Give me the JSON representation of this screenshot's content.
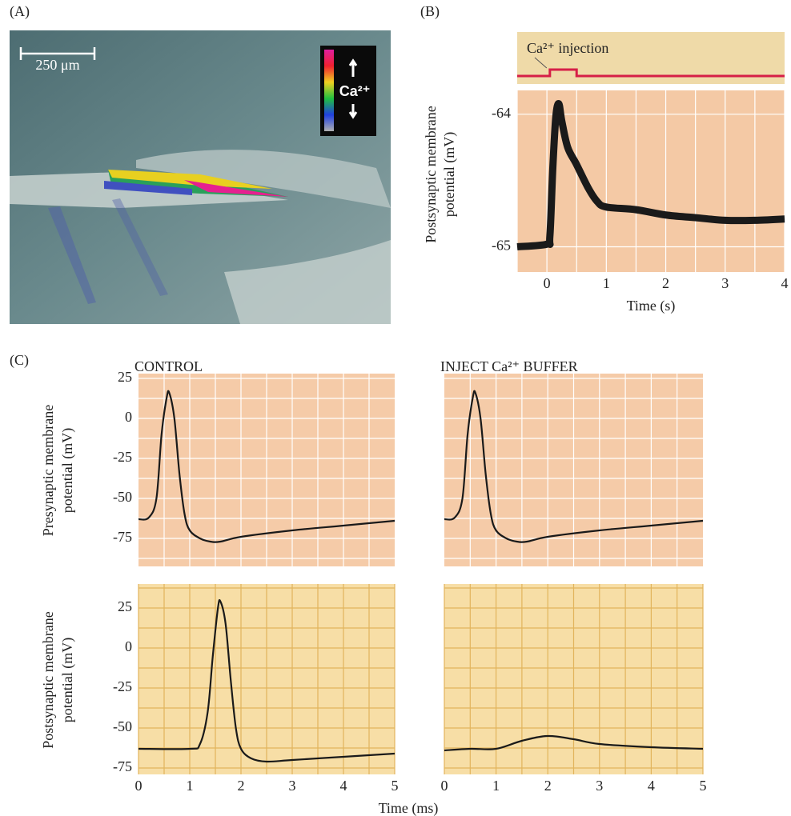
{
  "panel_labels": [
    "(A)",
    "(B)",
    "(C)"
  ],
  "image": {
    "scale_bar": "250 μm",
    "legend": "Ca²⁺"
  },
  "x_label_c": "Time (ms)",
  "chart_data": [
    {
      "type": "line",
      "x_label": "Time (s)",
      "y_label": [
        "Postsynaptic membrane",
        "potential (mV)"
      ],
      "xlim": [
        -0.5,
        4
      ],
      "xticks": [
        0,
        1,
        2,
        3,
        4
      ],
      "minor_xticks": [
        -0.5,
        0.5,
        1.5,
        2.5,
        3.5
      ],
      "ylim": [
        -65.19,
        -63.82
      ],
      "yticks": [
        -64,
        -65
      ],
      "background": "#f4c9a5",
      "grid_color": "#ffffff",
      "color": "#1a1a1a",
      "line_width": 9,
      "x": [
        -0.5,
        0,
        0.05,
        0.1,
        0.15,
        0.2,
        0.25,
        0.35,
        0.5,
        0.7,
        0.85,
        1,
        1.5,
        2,
        2.5,
        3,
        3.5,
        4
      ],
      "values": [
        -65.0,
        -64.98,
        -64.92,
        -64.4,
        -64.02,
        -63.92,
        -64.05,
        -64.25,
        -64.38,
        -64.56,
        -64.66,
        -64.7,
        -64.72,
        -64.76,
        -64.78,
        -64.8,
        -64.8,
        -64.79
      ],
      "stimulus": {
        "label": "Ca²⁺ injection",
        "color": "#d61f47",
        "background": "#efdaa8",
        "x": [
          0.05,
          0.5
        ]
      }
    },
    {
      "type": "line",
      "title": "CONTROL",
      "y_label": [
        "Presynaptic membrane",
        "potential (mV)"
      ],
      "xlim": [
        0,
        5
      ],
      "minor_xticks": [
        0.5,
        1,
        1.5,
        2,
        2.5,
        3,
        3.5,
        4,
        4.5
      ],
      "ylim": [
        -92.5,
        28
      ],
      "yticks": [
        25,
        0,
        -25,
        -50,
        -75
      ],
      "minor_yticks": [
        12.5,
        -12.5,
        -37.5,
        -62.5,
        -87.5
      ],
      "background": "#f5cba8",
      "grid_color": "#ffffff",
      "color": "#1a1a1a",
      "line_width": 2.2,
      "x": [
        0,
        0.2,
        0.35,
        0.45,
        0.55,
        0.6,
        0.7,
        0.8,
        0.9,
        1.0,
        1.2,
        1.4,
        1.6,
        2,
        3,
        4,
        5
      ],
      "values": [
        -63,
        -62,
        -50,
        -10,
        13,
        16,
        0,
        -35,
        -60,
        -70,
        -75,
        -77,
        -77,
        -74,
        -70,
        -67,
        -64
      ]
    },
    {
      "type": "line",
      "title": "INJECT Ca²⁺ BUFFER",
      "xlim": [
        0,
        5
      ],
      "minor_xticks": [
        0.5,
        1,
        1.5,
        2,
        2.5,
        3,
        3.5,
        4,
        4.5
      ],
      "ylim": [
        -92.5,
        28
      ],
      "minor_yticks": [
        25,
        12.5,
        0,
        -12.5,
        -25,
        -37.5,
        -50,
        -62.5,
        -75,
        -87.5
      ],
      "background": "#f5cba8",
      "grid_color": "#ffffff",
      "color": "#1a1a1a",
      "line_width": 2.2,
      "x": [
        0,
        0.2,
        0.35,
        0.45,
        0.55,
        0.6,
        0.7,
        0.8,
        0.9,
        1.0,
        1.2,
        1.4,
        1.6,
        2,
        3,
        4,
        5
      ],
      "values": [
        -63,
        -62,
        -50,
        -10,
        13,
        16,
        0,
        -35,
        -60,
        -70,
        -75,
        -77,
        -77,
        -74,
        -70,
        -67,
        -64
      ]
    },
    {
      "type": "line",
      "y_label": [
        "Postsynaptic membrane",
        "potential (mV)"
      ],
      "xlim": [
        0,
        5
      ],
      "xticks": [
        0,
        1,
        2,
        3,
        4,
        5
      ],
      "minor_xticks": [
        0.5,
        1.5,
        2.5,
        3.5,
        4.5
      ],
      "ylim": [
        -79,
        40
      ],
      "yticks": [
        25,
        0,
        -25,
        -50,
        -75
      ],
      "minor_yticks": [
        37.5,
        12.5,
        -12.5,
        -37.5,
        -62.5
      ],
      "background": "#f7dea6",
      "grid_color": "#e2b45c",
      "color": "#1a1a1a",
      "line_width": 2.2,
      "x": [
        0,
        1,
        1.2,
        1.35,
        1.45,
        1.55,
        1.6,
        1.7,
        1.8,
        1.9,
        2,
        2.2,
        2.5,
        3,
        4,
        5
      ],
      "values": [
        -63,
        -63,
        -60,
        -40,
        -5,
        25,
        29,
        15,
        -20,
        -50,
        -63,
        -69,
        -71,
        -70,
        -68,
        -66
      ]
    },
    {
      "type": "line",
      "xlim": [
        0,
        5
      ],
      "xticks": [
        0,
        1,
        2,
        3,
        4,
        5
      ],
      "minor_xticks": [
        0.5,
        1.5,
        2.5,
        3.5,
        4.5
      ],
      "ylim": [
        -79,
        40
      ],
      "minor_yticks": [
        37.5,
        25,
        12.5,
        0,
        -12.5,
        -25,
        -37.5,
        -50,
        -62.5,
        -75
      ],
      "background": "#f7dea6",
      "grid_color": "#e2b45c",
      "color": "#1a1a1a",
      "line_width": 2.2,
      "x": [
        0,
        0.5,
        1,
        1.5,
        2,
        2.5,
        3,
        4,
        5
      ],
      "values": [
        -64,
        -63,
        -63,
        -58,
        -55,
        -57,
        -60,
        -62,
        -63
      ]
    }
  ]
}
